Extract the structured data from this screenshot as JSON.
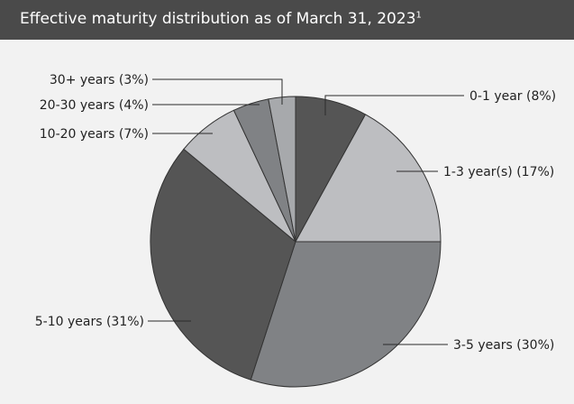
{
  "title": {
    "text": "Effective maturity distribution as of March 31, 2023",
    "superscript": "1"
  },
  "chart_data": {
    "type": "pie",
    "title": "Effective maturity distribution as of March 31, 2023",
    "start": "12 o'clock",
    "direction": "clockwise",
    "slices": [
      {
        "label": "0-1 year (8%)",
        "category": "0-1 year",
        "value": 8,
        "color": "#555555"
      },
      {
        "label": "1-3 year(s) (17%)",
        "category": "1-3 year(s)",
        "value": 17,
        "color": "#bdbec1"
      },
      {
        "label": "3-5 years (30%)",
        "category": "3-5 years",
        "value": 30,
        "color": "#808285"
      },
      {
        "label": "5-10 years (31%)",
        "category": "5-10 years",
        "value": 31,
        "color": "#555555"
      },
      {
        "label": "10-20 years (7%)",
        "category": "10-20 years",
        "value": 7,
        "color": "#bdbec1"
      },
      {
        "label": "20-30 years (4%)",
        "category": "20-30 years",
        "value": 4,
        "color": "#808285"
      },
      {
        "label": "30+ years (3%)",
        "category": "30+ years",
        "value": 3,
        "color": "#a7a9ac"
      }
    ]
  },
  "colors": {
    "title_bar": "#4a4a4a",
    "background": "#f2f2f2"
  }
}
